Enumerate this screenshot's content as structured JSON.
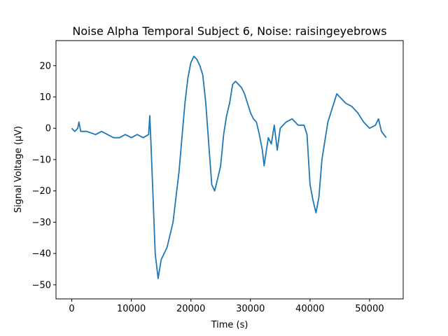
{
  "chart_data": {
    "type": "line",
    "title": "Noise Alpha Temporal Subject 6, Noise: raisingeyebrows",
    "xlabel": "Time (s)",
    "ylabel": "Signal Voltage (μV)",
    "xlim": [
      -2650,
      55650
    ],
    "ylim": [
      -54.5,
      28
    ],
    "grid": false,
    "legend": "none",
    "x_ticks": [
      0,
      10000,
      20000,
      30000,
      40000,
      50000
    ],
    "x_tick_labels": [
      "0",
      "10000",
      "20000",
      "30000",
      "40000",
      "50000"
    ],
    "y_ticks": [
      -50,
      -40,
      -30,
      -20,
      -10,
      0,
      10,
      20
    ],
    "y_tick_labels": [
      "−50",
      "−40",
      "−30",
      "−20",
      "−10",
      "0",
      "10",
      "20"
    ],
    "series": [
      {
        "color": "#1f77b4",
        "x": [
          0,
          500,
          1000,
          1200,
          1500,
          2500,
          4000,
          5000,
          6000,
          7000,
          8000,
          9000,
          10000,
          11000,
          12000,
          12900,
          13100,
          13300,
          13600,
          14000,
          14500,
          15000,
          16000,
          17000,
          17500,
          18000,
          18500,
          19000,
          19500,
          20000,
          20500,
          21000,
          21500,
          22000,
          22500,
          23000,
          23500,
          24000,
          24500,
          25000,
          25500,
          26000,
          26500,
          27000,
          27500,
          28000,
          28500,
          29000,
          30000,
          30500,
          31000,
          31500,
          32000,
          32300,
          32600,
          33000,
          33500,
          34000,
          34500,
          35000,
          36000,
          37000,
          38000,
          39000,
          39500,
          40000,
          40500,
          41000,
          41500,
          42000,
          43000,
          44000,
          44500,
          45000,
          46000,
          47000,
          48000,
          49000,
          50000,
          51000,
          51500,
          52000,
          52800
        ],
        "y": [
          0,
          -1,
          0,
          2,
          -1,
          -1,
          -2,
          -1,
          -2,
          -3,
          -3,
          -2,
          -3,
          -2,
          -3,
          -2,
          4,
          -5,
          -20,
          -40,
          -48,
          -42,
          -38,
          -30,
          -22,
          -14,
          -3,
          8,
          16,
          21,
          23,
          22,
          20,
          17,
          8,
          -5,
          -18,
          -20,
          -16,
          -12,
          -2,
          4,
          8,
          14,
          15,
          14,
          13,
          11,
          5,
          3,
          2,
          -2,
          -7,
          -12,
          -8,
          -3,
          -5,
          1,
          -7,
          0,
          2,
          3,
          1,
          1,
          -2,
          -18,
          -23,
          -27,
          -22,
          -10,
          2,
          8,
          11,
          10,
          8,
          7,
          5,
          2,
          0,
          1,
          3,
          -1,
          -3
        ]
      }
    ]
  }
}
